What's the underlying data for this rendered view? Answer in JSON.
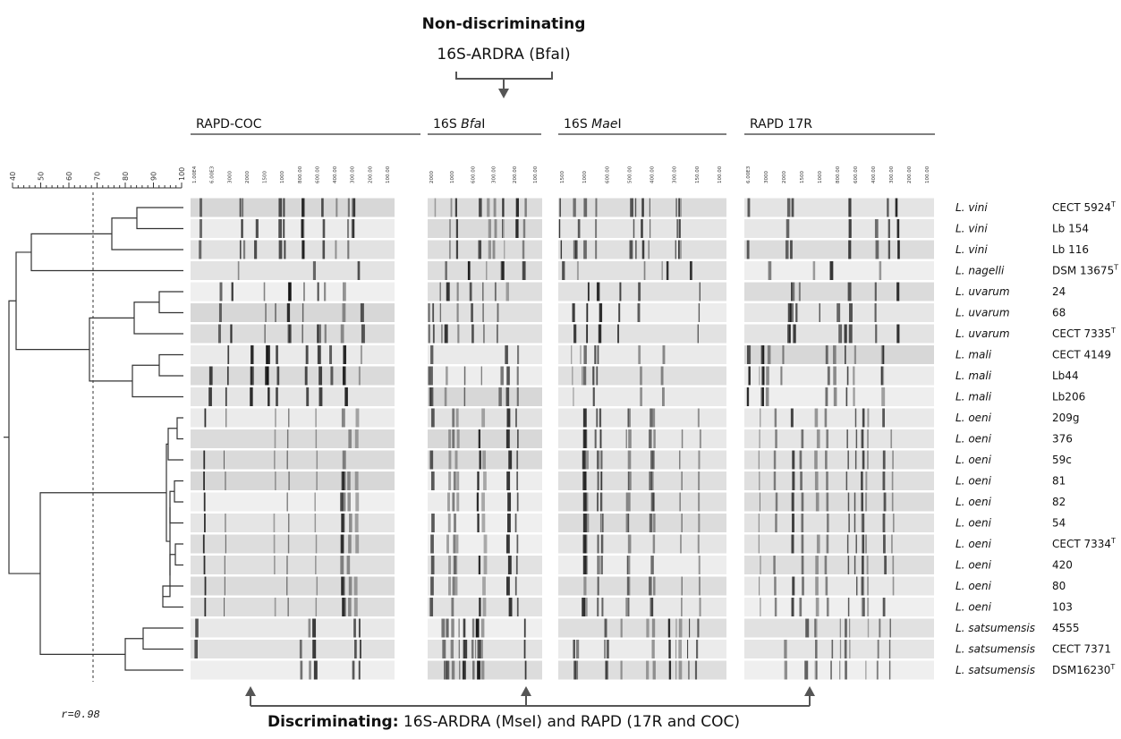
{
  "header": {
    "title": "Non-discriminating",
    "subtitle": "16S-ARDRA (BfaI)"
  },
  "scale": {
    "ticks": [
      "40",
      "50",
      "60",
      "70",
      "80",
      "90",
      "100"
    ]
  },
  "panels": [
    {
      "label": [
        {
          "text": "RAPD-COC"
        }
      ],
      "ladder": [
        "1.00E4",
        "6.00E3",
        "3000",
        "2000",
        "1500",
        "1000",
        "800.00",
        "600.00",
        "400.00",
        "300.00",
        "200.00",
        "100.00"
      ]
    },
    {
      "label": [
        {
          "text": "16S "
        },
        {
          "text": "Bfa",
          "italic": true
        },
        {
          "text": "I"
        }
      ],
      "ladder": [
        "2000",
        "1000",
        "600.00",
        "300.00",
        "200.00",
        "100.00"
      ]
    },
    {
      "label": [
        {
          "text": "16S "
        },
        {
          "text": "Mae",
          "italic": true
        },
        {
          "text": "I"
        }
      ],
      "ladder": [
        "1500",
        "1000",
        "600.00",
        "500.00",
        "400.00",
        "300.00",
        "150.00",
        "100.00"
      ]
    },
    {
      "label": [
        {
          "text": "RAPD 17R"
        }
      ],
      "ladder": [
        "6.00E3",
        "3000",
        "2000",
        "1500",
        "1000",
        "800.00",
        "600.00",
        "400.00",
        "300.00",
        "200.00",
        "100.00"
      ]
    }
  ],
  "strains": [
    {
      "species": "L. vini",
      "strain": "CECT 5924",
      "type": "T"
    },
    {
      "species": "L. vini",
      "strain": "Lb 154"
    },
    {
      "species": "L. vini",
      "strain": "Lb 116"
    },
    {
      "species": "L. nagelli",
      "strain": "DSM 13675",
      "type": "T"
    },
    {
      "species": "L. uvarum",
      "strain": "24"
    },
    {
      "species": "L. uvarum",
      "strain": "68"
    },
    {
      "species": "L. uvarum",
      "strain": "CECT 7335",
      "type": "T"
    },
    {
      "species": "L. mali",
      "strain": "CECT 4149"
    },
    {
      "species": "L. mali",
      "strain": "Lb44"
    },
    {
      "species": "L. mali",
      "strain": "Lb206"
    },
    {
      "species": "L. oeni",
      "strain": "209g"
    },
    {
      "species": "L. oeni",
      "strain": "376"
    },
    {
      "species": "L. oeni",
      "strain": "59c"
    },
    {
      "species": "L. oeni",
      "strain": "81"
    },
    {
      "species": "L. oeni",
      "strain": "82"
    },
    {
      "species": "L. oeni",
      "strain": "54"
    },
    {
      "species": "L. oeni",
      "strain": "CECT 7334",
      "type": "T"
    },
    {
      "species": "L. oeni",
      "strain": "420"
    },
    {
      "species": "L. oeni",
      "strain": "80"
    },
    {
      "species": "L. oeni",
      "strain": "103"
    },
    {
      "species": "L. satsumensis",
      "strain": "4555"
    },
    {
      "species": "L. satsumensis",
      "strain": "CECT 7371"
    },
    {
      "species": "L. satsumensis",
      "strain": "DSM16230",
      "type": "T"
    }
  ],
  "footer": {
    "r": "r=0.98",
    "bold": "Discriminating:",
    "text": " 16S-ARDRA (MseI) and RAPD (17R and COC)"
  }
}
